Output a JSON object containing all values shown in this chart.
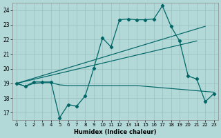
{
  "background_color": "#b2d8d8",
  "grid_color": "#9bbfbf",
  "line_color": "#006666",
  "xlabel": "Humidex (Indice chaleur)",
  "ylim": [
    16.5,
    24.5
  ],
  "xlim": [
    -0.5,
    23.5
  ],
  "yticks": [
    17,
    18,
    19,
    20,
    21,
    22,
    23,
    24
  ],
  "xticks": [
    0,
    1,
    2,
    3,
    4,
    5,
    6,
    7,
    8,
    9,
    10,
    11,
    12,
    13,
    14,
    15,
    16,
    17,
    18,
    19,
    20,
    21,
    22,
    23
  ],
  "line1_x": [
    0,
    1,
    2,
    3,
    4,
    5,
    6,
    7,
    8,
    9,
    10,
    11,
    12,
    13,
    14,
    15,
    16,
    17,
    18,
    19,
    20,
    21,
    22,
    23
  ],
  "line1_y": [
    19.0,
    18.8,
    19.1,
    19.1,
    19.1,
    16.65,
    17.55,
    17.45,
    18.15,
    20.05,
    22.1,
    21.5,
    23.35,
    23.4,
    23.35,
    23.35,
    23.4,
    24.3,
    22.9,
    21.9,
    19.5,
    19.3,
    17.75,
    18.3
  ],
  "line2_x": [
    0,
    1,
    2,
    3,
    4,
    5,
    6,
    7,
    8,
    9,
    10,
    11,
    12,
    13,
    14,
    15,
    16,
    17,
    18,
    19,
    20,
    21,
    22,
    23
  ],
  "line2_y": [
    19.0,
    18.8,
    19.0,
    19.05,
    19.05,
    18.9,
    18.85,
    18.85,
    18.85,
    18.85,
    18.85,
    18.85,
    18.85,
    18.85,
    18.85,
    18.8,
    18.75,
    18.7,
    18.65,
    18.6,
    18.55,
    18.5,
    18.45,
    18.4
  ],
  "trend1_x": [
    0,
    22
  ],
  "trend1_y": [
    19.0,
    22.9
  ],
  "trend2_x": [
    0,
    21
  ],
  "trend2_y": [
    19.0,
    21.9
  ]
}
